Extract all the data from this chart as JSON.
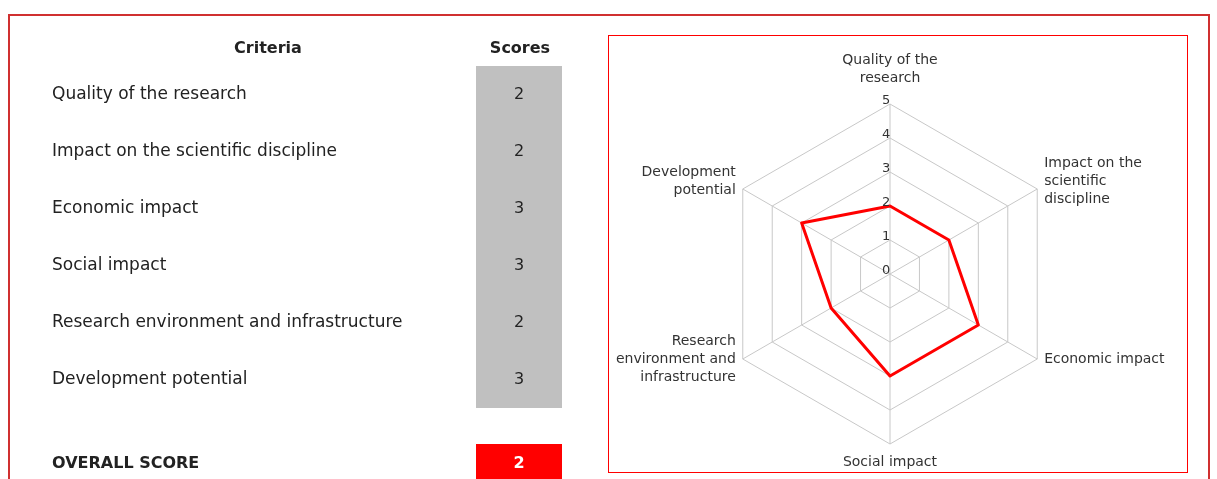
{
  "chart_data": [
    {
      "type": "other",
      "xlabel": "Criteria",
      "ylabel": "Scores",
      "categories": [
        "Quality of the research",
        "Impact on the scientific discipline",
        "Economic impact",
        "Social impact",
        "Research environment and infrastructure",
        "Development potential"
      ],
      "values": [
        2,
        2,
        3,
        3,
        2,
        3
      ],
      "data_labels": true,
      "color": "#c0c0c0",
      "annotations": [
        "OVERALL SCORE",
        "2"
      ]
    },
    {
      "type": "radar",
      "categories": [
        "Quality of the research",
        "Impact on the scientific discipline",
        "Economic impact",
        "Social impact",
        "Research environment and infrastructure",
        "Development potential"
      ],
      "series": [
        {
          "color": "#ff0000",
          "values": [
            2,
            2,
            3,
            3,
            2,
            3
          ]
        }
      ],
      "ylim": [
        0,
        5
      ],
      "yticks": [
        0,
        1,
        2,
        3,
        4,
        5
      ],
      "grid": true,
      "marker": "none"
    }
  ]
}
